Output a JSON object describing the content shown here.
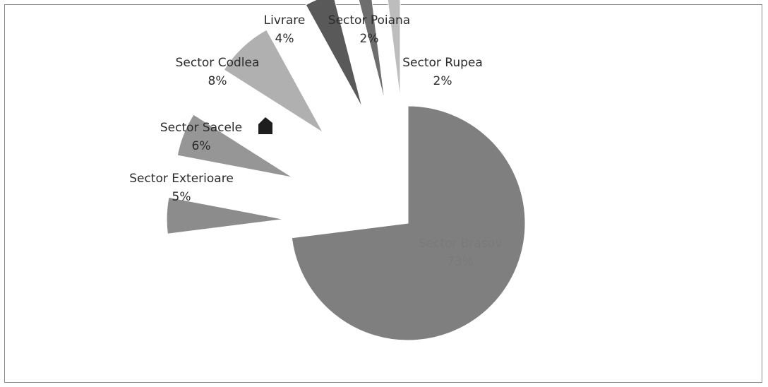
{
  "chart_data": {
    "type": "pie",
    "title": "",
    "legend": "none",
    "exploded": true,
    "slices": [
      {
        "name": "Sector Brasov",
        "value": 73,
        "pct_label": "73%",
        "color": "#7f7f7f"
      },
      {
        "name": "Sector Exterioare",
        "value": 5,
        "pct_label": "5%",
        "color": "#8c8c8c"
      },
      {
        "name": "Sector Sacele",
        "value": 6,
        "pct_label": "6%",
        "color": "#969696"
      },
      {
        "name": "Sector Codlea",
        "value": 8,
        "pct_label": "8%",
        "color": "#b0b0b0"
      },
      {
        "name": "Livrare",
        "value": 4,
        "pct_label": "4%",
        "color": "#595959"
      },
      {
        "name": "Sector Poiana",
        "value": 2,
        "pct_label": "2%",
        "color": "#6e6e6e"
      },
      {
        "name": "Sector Rupea",
        "value": 2,
        "pct_label": "2%",
        "color": "#bdbdbd"
      }
    ]
  }
}
